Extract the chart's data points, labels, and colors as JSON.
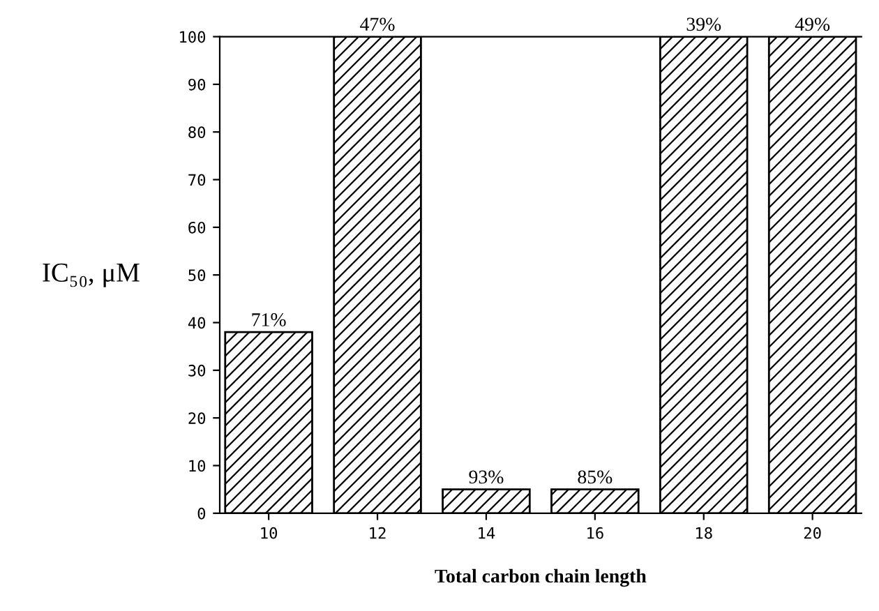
{
  "chart_data": {
    "type": "bar",
    "xlabel": "Total carbon chain length",
    "ylabel": "IC₅₀, μM",
    "categories": [
      "10",
      "12",
      "14",
      "16",
      "18",
      "20"
    ],
    "values": [
      38,
      100,
      5,
      5,
      100,
      100
    ],
    "color": "#000000",
    "ylim": [
      0,
      100
    ],
    "yticks": [
      0,
      10,
      20,
      30,
      40,
      50,
      60,
      70,
      80,
      90,
      100
    ],
    "grid": false,
    "legend": false,
    "annotations": [
      {
        "text": "71%",
        "x": "10",
        "y": 38
      },
      {
        "text": "47%",
        "x": "12",
        "y": 100
      },
      {
        "text": "93%",
        "x": "14",
        "y": 5
      },
      {
        "text": "85%",
        "x": "16",
        "y": 5
      },
      {
        "text": "39%",
        "x": "18",
        "y": 100
      },
      {
        "text": "49%",
        "x": "20",
        "y": 100
      }
    ]
  }
}
